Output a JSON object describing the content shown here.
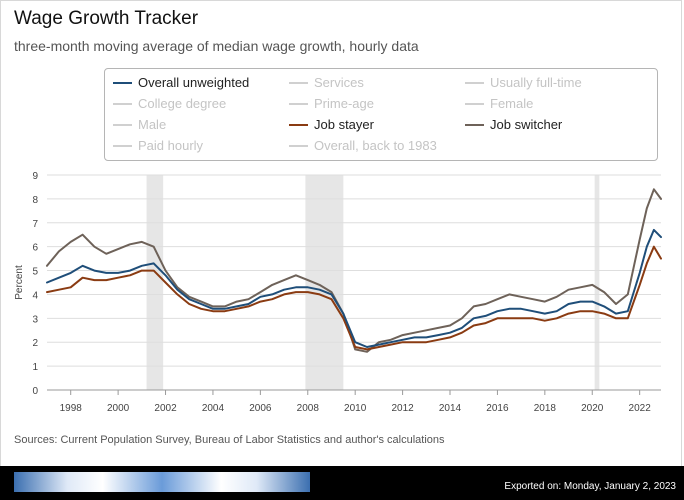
{
  "header": {
    "title": "Wage Growth Tracker",
    "subtitle": "three-month moving average of median wage growth, hourly data"
  },
  "legend": {
    "items": [
      {
        "label": "Overall unweighted",
        "color": "#1f4e79",
        "active": true
      },
      {
        "label": "Services",
        "color": "#d0d0d0",
        "active": false
      },
      {
        "label": "Usually full-time",
        "color": "#d0d0d0",
        "active": false
      },
      {
        "label": "College degree",
        "color": "#d0d0d0",
        "active": false
      },
      {
        "label": "Prime-age",
        "color": "#d0d0d0",
        "active": false
      },
      {
        "label": "Female",
        "color": "#d0d0d0",
        "active": false
      },
      {
        "label": "Male",
        "color": "#d0d0d0",
        "active": false
      },
      {
        "label": "Job stayer",
        "color": "#8a3b12",
        "active": true
      },
      {
        "label": "Job switcher",
        "color": "#6e6259",
        "active": true
      },
      {
        "label": "Paid hourly",
        "color": "#d0d0d0",
        "active": false
      },
      {
        "label": "Overall, back to 1983",
        "color": "#d0d0d0",
        "active": false
      }
    ]
  },
  "chart_data": {
    "type": "line",
    "title": "Wage Growth Tracker",
    "ylabel": "Percent",
    "xlim": [
      1997.0,
      2022.9
    ],
    "ylim": [
      0,
      9
    ],
    "y_ticks": [
      0,
      1,
      2,
      3,
      4,
      5,
      6,
      7,
      8,
      9
    ],
    "x_ticks": [
      "1998",
      "2000",
      "2002",
      "2004",
      "2006",
      "2008",
      "2010",
      "2012",
      "2014",
      "2016",
      "2018",
      "2020",
      "2022"
    ],
    "grid": true,
    "recessions": [
      [
        2001.2,
        2001.9
      ],
      [
        2007.9,
        2009.5
      ],
      [
        2020.1,
        2020.3
      ]
    ],
    "series": [
      {
        "name": "Overall unweighted",
        "color": "#1f4e79",
        "points": [
          [
            1997.0,
            4.5
          ],
          [
            1997.5,
            4.7
          ],
          [
            1998.0,
            4.9
          ],
          [
            1998.5,
            5.2
          ],
          [
            1999.0,
            5.0
          ],
          [
            1999.5,
            4.9
          ],
          [
            2000.0,
            4.9
          ],
          [
            2000.5,
            5.0
          ],
          [
            2001.0,
            5.2
          ],
          [
            2001.5,
            5.3
          ],
          [
            2002.0,
            4.8
          ],
          [
            2002.5,
            4.2
          ],
          [
            2003.0,
            3.8
          ],
          [
            2003.5,
            3.6
          ],
          [
            2004.0,
            3.4
          ],
          [
            2004.5,
            3.4
          ],
          [
            2005.0,
            3.5
          ],
          [
            2005.5,
            3.6
          ],
          [
            2006.0,
            3.9
          ],
          [
            2006.5,
            4.0
          ],
          [
            2007.0,
            4.2
          ],
          [
            2007.5,
            4.3
          ],
          [
            2008.0,
            4.3
          ],
          [
            2008.5,
            4.2
          ],
          [
            2009.0,
            4.0
          ],
          [
            2009.5,
            3.2
          ],
          [
            2010.0,
            2.0
          ],
          [
            2010.5,
            1.8
          ],
          [
            2011.0,
            1.9
          ],
          [
            2011.5,
            2.0
          ],
          [
            2012.0,
            2.1
          ],
          [
            2012.5,
            2.2
          ],
          [
            2013.0,
            2.2
          ],
          [
            2013.5,
            2.3
          ],
          [
            2014.0,
            2.4
          ],
          [
            2014.5,
            2.6
          ],
          [
            2015.0,
            3.0
          ],
          [
            2015.5,
            3.1
          ],
          [
            2016.0,
            3.3
          ],
          [
            2016.5,
            3.4
          ],
          [
            2017.0,
            3.4
          ],
          [
            2017.5,
            3.3
          ],
          [
            2018.0,
            3.2
          ],
          [
            2018.5,
            3.3
          ],
          [
            2019.0,
            3.6
          ],
          [
            2019.5,
            3.7
          ],
          [
            2020.0,
            3.7
          ],
          [
            2020.5,
            3.5
          ],
          [
            2021.0,
            3.2
          ],
          [
            2021.5,
            3.3
          ],
          [
            2022.0,
            4.9
          ],
          [
            2022.3,
            6.0
          ],
          [
            2022.6,
            6.7
          ],
          [
            2022.9,
            6.4
          ]
        ]
      },
      {
        "name": "Job stayer",
        "color": "#8a3b12",
        "points": [
          [
            1997.0,
            4.1
          ],
          [
            1997.5,
            4.2
          ],
          [
            1998.0,
            4.3
          ],
          [
            1998.5,
            4.7
          ],
          [
            1999.0,
            4.6
          ],
          [
            1999.5,
            4.6
          ],
          [
            2000.0,
            4.7
          ],
          [
            2000.5,
            4.8
          ],
          [
            2001.0,
            5.0
          ],
          [
            2001.5,
            5.0
          ],
          [
            2002.0,
            4.5
          ],
          [
            2002.5,
            4.0
          ],
          [
            2003.0,
            3.6
          ],
          [
            2003.5,
            3.4
          ],
          [
            2004.0,
            3.3
          ],
          [
            2004.5,
            3.3
          ],
          [
            2005.0,
            3.4
          ],
          [
            2005.5,
            3.5
          ],
          [
            2006.0,
            3.7
          ],
          [
            2006.5,
            3.8
          ],
          [
            2007.0,
            4.0
          ],
          [
            2007.5,
            4.1
          ],
          [
            2008.0,
            4.1
          ],
          [
            2008.5,
            4.0
          ],
          [
            2009.0,
            3.8
          ],
          [
            2009.5,
            3.0
          ],
          [
            2010.0,
            1.8
          ],
          [
            2010.5,
            1.7
          ],
          [
            2011.0,
            1.8
          ],
          [
            2011.5,
            1.9
          ],
          [
            2012.0,
            2.0
          ],
          [
            2012.5,
            2.0
          ],
          [
            2013.0,
            2.0
          ],
          [
            2013.5,
            2.1
          ],
          [
            2014.0,
            2.2
          ],
          [
            2014.5,
            2.4
          ],
          [
            2015.0,
            2.7
          ],
          [
            2015.5,
            2.8
          ],
          [
            2016.0,
            3.0
          ],
          [
            2016.5,
            3.0
          ],
          [
            2017.0,
            3.0
          ],
          [
            2017.5,
            3.0
          ],
          [
            2018.0,
            2.9
          ],
          [
            2018.5,
            3.0
          ],
          [
            2019.0,
            3.2
          ],
          [
            2019.5,
            3.3
          ],
          [
            2020.0,
            3.3
          ],
          [
            2020.5,
            3.2
          ],
          [
            2021.0,
            3.0
          ],
          [
            2021.5,
            3.0
          ],
          [
            2022.0,
            4.4
          ],
          [
            2022.3,
            5.3
          ],
          [
            2022.6,
            6.0
          ],
          [
            2022.9,
            5.5
          ]
        ]
      },
      {
        "name": "Job switcher",
        "color": "#6e6259",
        "points": [
          [
            1997.0,
            5.2
          ],
          [
            1997.5,
            5.8
          ],
          [
            1998.0,
            6.2
          ],
          [
            1998.5,
            6.5
          ],
          [
            1999.0,
            6.0
          ],
          [
            1999.5,
            5.7
          ],
          [
            2000.0,
            5.9
          ],
          [
            2000.5,
            6.1
          ],
          [
            2001.0,
            6.2
          ],
          [
            2001.5,
            6.0
          ],
          [
            2002.0,
            5.0
          ],
          [
            2002.5,
            4.3
          ],
          [
            2003.0,
            3.9
          ],
          [
            2003.5,
            3.7
          ],
          [
            2004.0,
            3.5
          ],
          [
            2004.5,
            3.5
          ],
          [
            2005.0,
            3.7
          ],
          [
            2005.5,
            3.8
          ],
          [
            2006.0,
            4.1
          ],
          [
            2006.5,
            4.4
          ],
          [
            2007.0,
            4.6
          ],
          [
            2007.5,
            4.8
          ],
          [
            2008.0,
            4.6
          ],
          [
            2008.5,
            4.4
          ],
          [
            2009.0,
            4.1
          ],
          [
            2009.5,
            3.2
          ],
          [
            2010.0,
            1.7
          ],
          [
            2010.5,
            1.6
          ],
          [
            2011.0,
            2.0
          ],
          [
            2011.5,
            2.1
          ],
          [
            2012.0,
            2.3
          ],
          [
            2012.5,
            2.4
          ],
          [
            2013.0,
            2.5
          ],
          [
            2013.5,
            2.6
          ],
          [
            2014.0,
            2.7
          ],
          [
            2014.5,
            3.0
          ],
          [
            2015.0,
            3.5
          ],
          [
            2015.5,
            3.6
          ],
          [
            2016.0,
            3.8
          ],
          [
            2016.5,
            4.0
          ],
          [
            2017.0,
            3.9
          ],
          [
            2017.5,
            3.8
          ],
          [
            2018.0,
            3.7
          ],
          [
            2018.5,
            3.9
          ],
          [
            2019.0,
            4.2
          ],
          [
            2019.5,
            4.3
          ],
          [
            2020.0,
            4.4
          ],
          [
            2020.5,
            4.1
          ],
          [
            2021.0,
            3.6
          ],
          [
            2021.5,
            4.0
          ],
          [
            2022.0,
            6.3
          ],
          [
            2022.3,
            7.6
          ],
          [
            2022.6,
            8.4
          ],
          [
            2022.9,
            8.0
          ]
        ]
      }
    ]
  },
  "footer": {
    "sources": "Sources: Current Population Survey, Bureau of Labor Statistics and author's calculations",
    "exported": "Exported on: Monday, January 2, 2023"
  }
}
